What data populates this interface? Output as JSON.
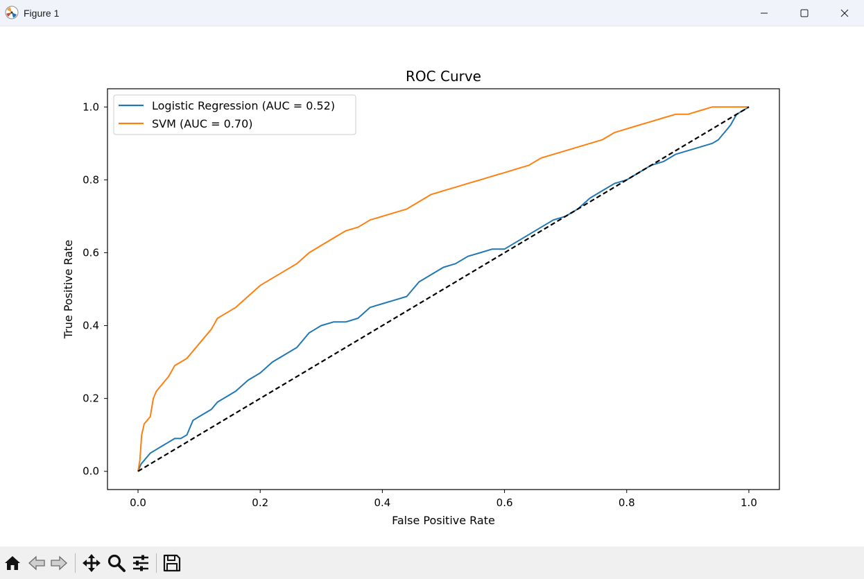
{
  "window": {
    "title": "Figure 1",
    "controls": {
      "minimize": "minimize",
      "maximize": "maximize",
      "close": "close"
    }
  },
  "colors": {
    "series_1": "#1f77b4",
    "series_2": "#ff7f0e",
    "diagonal": "#000000",
    "toolbar_bg": "#f0f0f0",
    "titlebar_bg": "#f0f3f9"
  },
  "toolbar": {
    "icons": [
      "home-icon",
      "back-icon",
      "forward-icon",
      "pan-icon",
      "zoom-icon",
      "configure-icon",
      "save-icon"
    ]
  },
  "chart_data": {
    "type": "line",
    "title": "ROC Curve",
    "xlabel": "False Positive Rate",
    "ylabel": "True Positive Rate",
    "xlim": [
      -0.05,
      1.05
    ],
    "ylim": [
      -0.05,
      1.05
    ],
    "xticks": [
      0.0,
      0.2,
      0.4,
      0.6,
      0.8,
      1.0
    ],
    "yticks": [
      0.0,
      0.2,
      0.4,
      0.6,
      0.8,
      1.0
    ],
    "xtick_labels": [
      "0.0",
      "0.2",
      "0.4",
      "0.6",
      "0.8",
      "1.0"
    ],
    "ytick_labels": [
      "0.0",
      "0.2",
      "0.4",
      "0.6",
      "0.8",
      "1.0"
    ],
    "grid": false,
    "legend_position": "upper-left",
    "series": [
      {
        "name": "Logistic Regression (AUC = 0.52)",
        "color": "#1f77b4",
        "style": "solid",
        "x": [
          0,
          0.005,
          0.01,
          0.02,
          0.03,
          0.04,
          0.05,
          0.06,
          0.07,
          0.08,
          0.09,
          0.1,
          0.12,
          0.13,
          0.15,
          0.16,
          0.18,
          0.2,
          0.22,
          0.24,
          0.26,
          0.28,
          0.29,
          0.3,
          0.32,
          0.34,
          0.36,
          0.38,
          0.4,
          0.42,
          0.44,
          0.46,
          0.48,
          0.5,
          0.52,
          0.54,
          0.56,
          0.58,
          0.6,
          0.62,
          0.64,
          0.66,
          0.68,
          0.7,
          0.72,
          0.74,
          0.76,
          0.78,
          0.8,
          0.82,
          0.84,
          0.86,
          0.88,
          0.9,
          0.92,
          0.94,
          0.95,
          0.96,
          0.97,
          0.98,
          1.0
        ],
        "y": [
          0,
          0.02,
          0.03,
          0.05,
          0.06,
          0.07,
          0.08,
          0.09,
          0.09,
          0.1,
          0.14,
          0.15,
          0.17,
          0.19,
          0.21,
          0.22,
          0.25,
          0.27,
          0.3,
          0.32,
          0.34,
          0.38,
          0.39,
          0.4,
          0.41,
          0.41,
          0.42,
          0.45,
          0.46,
          0.47,
          0.48,
          0.52,
          0.54,
          0.56,
          0.57,
          0.59,
          0.6,
          0.61,
          0.61,
          0.63,
          0.65,
          0.67,
          0.69,
          0.7,
          0.72,
          0.75,
          0.77,
          0.79,
          0.8,
          0.82,
          0.84,
          0.85,
          0.87,
          0.88,
          0.89,
          0.9,
          0.91,
          0.93,
          0.95,
          0.98,
          1.0
        ]
      },
      {
        "name": "SVM (AUC = 0.70)",
        "color": "#ff7f0e",
        "style": "solid",
        "x": [
          0,
          0.003,
          0.006,
          0.01,
          0.015,
          0.02,
          0.025,
          0.03,
          0.04,
          0.05,
          0.06,
          0.07,
          0.08,
          0.09,
          0.1,
          0.11,
          0.12,
          0.13,
          0.14,
          0.16,
          0.18,
          0.2,
          0.22,
          0.24,
          0.26,
          0.28,
          0.3,
          0.32,
          0.34,
          0.36,
          0.38,
          0.4,
          0.42,
          0.44,
          0.46,
          0.48,
          0.5,
          0.52,
          0.54,
          0.56,
          0.58,
          0.6,
          0.62,
          0.64,
          0.66,
          0.68,
          0.7,
          0.72,
          0.74,
          0.76,
          0.78,
          0.8,
          0.82,
          0.84,
          0.86,
          0.88,
          0.9,
          0.92,
          0.94,
          0.96,
          0.98,
          1.0
        ],
        "y": [
          0,
          0.03,
          0.1,
          0.13,
          0.14,
          0.15,
          0.2,
          0.22,
          0.24,
          0.26,
          0.29,
          0.3,
          0.31,
          0.33,
          0.35,
          0.37,
          0.39,
          0.42,
          0.43,
          0.45,
          0.48,
          0.51,
          0.53,
          0.55,
          0.57,
          0.6,
          0.62,
          0.64,
          0.66,
          0.67,
          0.69,
          0.7,
          0.71,
          0.72,
          0.74,
          0.76,
          0.77,
          0.78,
          0.79,
          0.8,
          0.81,
          0.82,
          0.83,
          0.84,
          0.86,
          0.87,
          0.88,
          0.89,
          0.9,
          0.91,
          0.93,
          0.94,
          0.95,
          0.96,
          0.97,
          0.98,
          0.98,
          0.99,
          1.0,
          1.0,
          1.0,
          1.0
        ]
      },
      {
        "name": "",
        "color": "#000000",
        "style": "dashed",
        "x": [
          0,
          1
        ],
        "y": [
          0,
          1
        ]
      }
    ]
  }
}
